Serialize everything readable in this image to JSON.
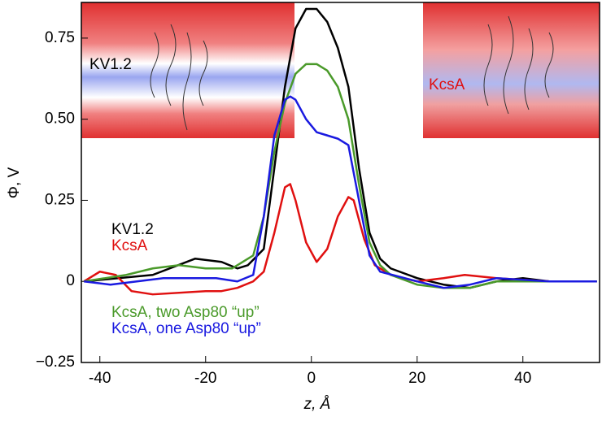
{
  "chart_data": {
    "type": "line",
    "xlabel": "z, Å",
    "ylabel": "Φ, V",
    "annotations": [
      "KV1.2",
      "KcsA"
    ],
    "xlim": [
      -43.5,
      54.5
    ],
    "ylim": [
      -0.25,
      0.86
    ],
    "xticks": [
      -40,
      -20,
      0,
      20,
      40
    ],
    "yticks": [
      {
        "value": -0.25,
        "label": "−0.25"
      },
      0,
      0.25,
      {
        "value": 0.5,
        "label": "0.50"
      },
      0.75
    ],
    "series": [
      {
        "name": "KV1.2",
        "color": "#000000",
        "x": [
          -43,
          -30,
          -22,
          -17,
          -14,
          -12,
          -9,
          -7,
          -5,
          -3,
          -1,
          1,
          3,
          5,
          7,
          9,
          11,
          13,
          15,
          20,
          25,
          30,
          35,
          40,
          45,
          54
        ],
        "values": [
          0,
          0.02,
          0.07,
          0.06,
          0.04,
          0.05,
          0.1,
          0.35,
          0.6,
          0.78,
          0.84,
          0.84,
          0.8,
          0.72,
          0.6,
          0.35,
          0.15,
          0.07,
          0.04,
          0.01,
          -0.01,
          -0.02,
          0,
          0.01,
          0,
          0
        ]
      },
      {
        "name": "KcsA",
        "color": "#e01010",
        "x": [
          -43,
          -40,
          -37,
          -34,
          -30,
          -20,
          -17,
          -14,
          -11,
          -9,
          -7,
          -5,
          -4,
          -3,
          -1,
          1,
          3,
          5,
          7,
          8,
          10,
          12,
          15,
          20,
          25,
          29,
          35,
          45,
          54
        ],
        "values": [
          0,
          0.03,
          0.02,
          -0.03,
          -0.04,
          -0.03,
          -0.03,
          -0.02,
          0,
          0.03,
          0.15,
          0.29,
          0.3,
          0.25,
          0.12,
          0.06,
          0.1,
          0.2,
          0.26,
          0.25,
          0.13,
          0.05,
          0.02,
          0,
          0.01,
          0.02,
          0.01,
          0,
          0
        ]
      },
      {
        "name": "KcsA, two Asp80 “up”",
        "color": "#4a9a2a",
        "x": [
          -43,
          -35,
          -30,
          -25,
          -20,
          -15,
          -11,
          -9,
          -7,
          -5,
          -3,
          -1,
          1,
          3,
          5,
          7,
          9,
          11,
          13,
          15,
          20,
          25,
          30,
          35,
          45,
          54
        ],
        "values": [
          0,
          0.02,
          0.04,
          0.05,
          0.04,
          0.04,
          0.08,
          0.2,
          0.4,
          0.55,
          0.64,
          0.67,
          0.67,
          0.65,
          0.6,
          0.5,
          0.3,
          0.12,
          0.05,
          0.02,
          -0.01,
          -0.02,
          -0.02,
          0,
          0,
          0
        ]
      },
      {
        "name": "KcsA, one Asp80 “up”",
        "color": "#1a1ae0",
        "x": [
          -43,
          -38,
          -33,
          -28,
          -22,
          -18,
          -14,
          -11,
          -9,
          -7,
          -5,
          -4,
          -3,
          -1,
          1,
          3,
          5,
          7,
          9,
          11,
          13,
          20,
          25,
          30,
          35,
          45,
          54
        ],
        "values": [
          0,
          -0.01,
          0,
          0.01,
          0.01,
          0.01,
          0,
          0.02,
          0.2,
          0.45,
          0.56,
          0.57,
          0.56,
          0.5,
          0.46,
          0.45,
          0.44,
          0.42,
          0.25,
          0.08,
          0.03,
          0,
          -0.02,
          -0.01,
          0.01,
          0,
          0
        ]
      }
    ]
  }
}
